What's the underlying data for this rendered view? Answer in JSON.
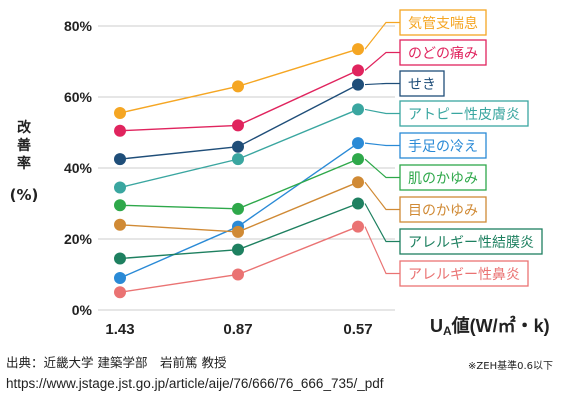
{
  "chart_data": {
    "type": "line",
    "categories": [
      "1.43",
      "0.87",
      "0.57"
    ],
    "ylabel": "改善率\n(%)",
    "xlabel_main": "U",
    "xlabel_sub": "A",
    "xlabel_rest": "値(W/㎡・k)",
    "ylim": [
      0,
      80
    ],
    "yticks": [
      0,
      20,
      40,
      60,
      80
    ],
    "ytick_labels": [
      "0%",
      "20%",
      "40%",
      "60%",
      "80%"
    ],
    "grid": true,
    "series": [
      {
        "name": "気管支喘息",
        "color": "#f5a623",
        "values": [
          55.5,
          63,
          73.5
        ]
      },
      {
        "name": "のどの痛み",
        "color": "#e0245e",
        "values": [
          50.5,
          52,
          67.5
        ]
      },
      {
        "name": "せき",
        "color": "#1f4e79",
        "values": [
          42.5,
          46,
          63.5
        ]
      },
      {
        "name": "アトピー性皮膚炎",
        "color": "#3aa6a0",
        "values": [
          34.5,
          42.5,
          56.5
        ]
      },
      {
        "name": "手足の冷え",
        "color": "#2a8ad6",
        "values": [
          9,
          23.5,
          47
        ]
      },
      {
        "name": "肌のかゆみ",
        "color": "#2ea84a",
        "values": [
          29.5,
          28.5,
          42.5
        ]
      },
      {
        "name": "目のかゆみ",
        "color": "#d08a35",
        "values": [
          24,
          22,
          36
        ]
      },
      {
        "name": "アレルギー性結膜炎",
        "color": "#1e8060",
        "values": [
          14.5,
          17,
          30
        ]
      },
      {
        "name": "アレルギー性鼻炎",
        "color": "#ea7373",
        "values": [
          5,
          10,
          23.5
        ]
      }
    ]
  },
  "source": {
    "credit": "出典：近畿大学 建築学部　岩前篤 教授",
    "url": "https://www.jstage.jst.go.jp/article/aije/76/666/76_666_735/_pdf",
    "note": "※ZEH基準0.6以下"
  }
}
